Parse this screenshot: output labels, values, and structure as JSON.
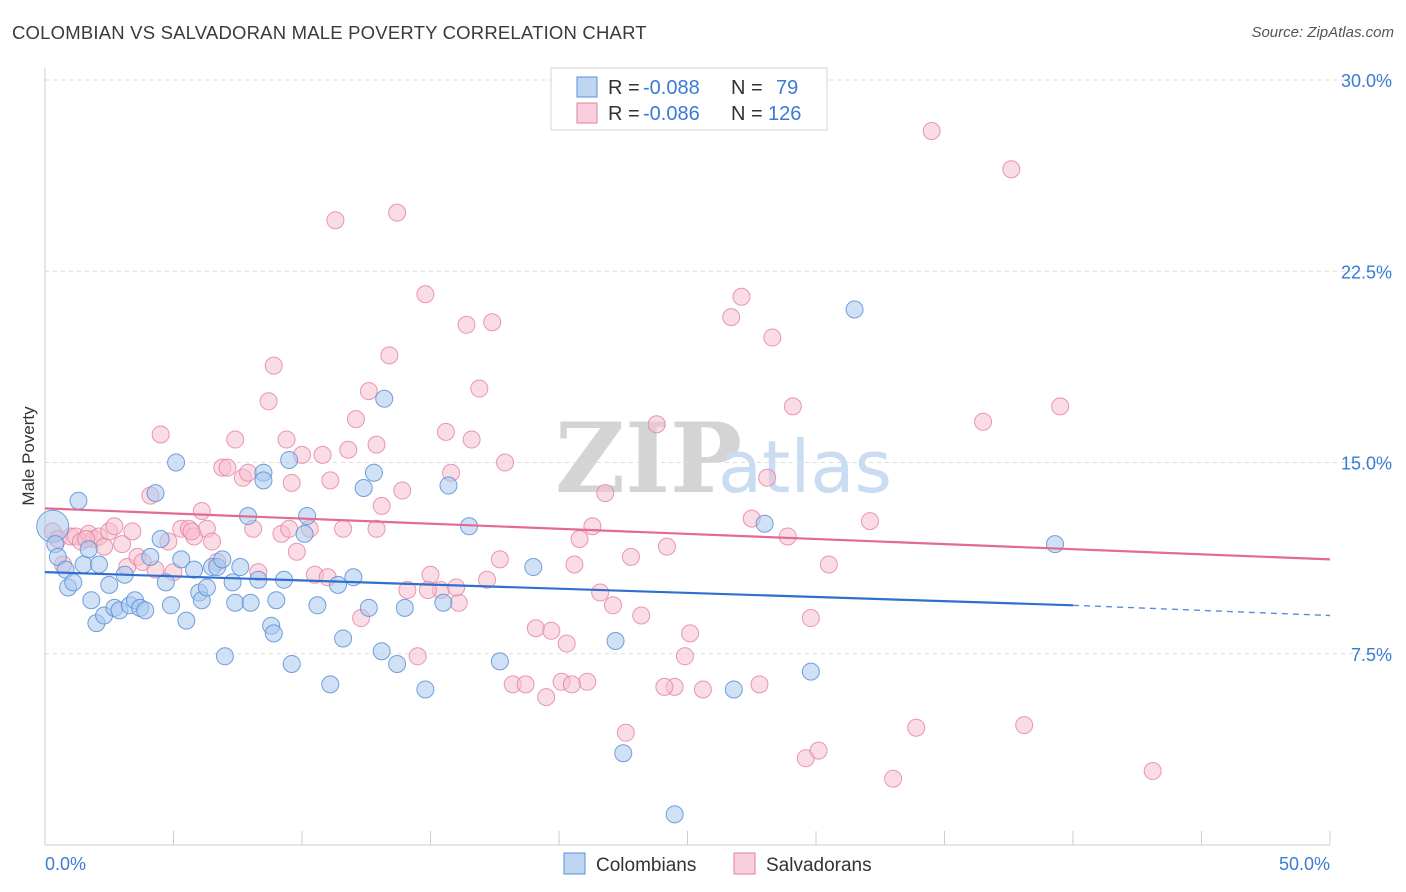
{
  "title": "COLOMBIAN VS SALVADORAN MALE POVERTY CORRELATION CHART",
  "source": "Source: ZipAtlas.com",
  "watermark": {
    "zip": "ZIP",
    "atlas": "atlas"
  },
  "colors": {
    "colombians_fill": "#a9c8ee",
    "colombians_stroke": "#5b8fd6",
    "colombians_line": "#2f6fcf",
    "salvadorans_fill": "#f6bfd0",
    "salvadorans_stroke": "#e57fa0",
    "salvadorans_line": "#e26a93",
    "tick_text": "#3a7bd5"
  },
  "legend_box": {
    "rows": [
      {
        "r_label": "R = ",
        "r_value": "-0.088",
        "n_label": "N = ",
        "n_value": "79"
      },
      {
        "r_label": "R = ",
        "r_value": "-0.086",
        "n_label": "N = ",
        "n_value": "126"
      }
    ]
  },
  "bottom_legend": [
    "Colombians",
    "Salvadorans"
  ],
  "chart_data": {
    "type": "scatter",
    "ylabel": "Male Poverty",
    "xlim": [
      0,
      50
    ],
    "ylim": [
      0,
      30
    ],
    "x_tick_labels": {
      "0": "0.0%",
      "50": "50.0%"
    },
    "y_tick_labels": {
      "7.5": "7.5%",
      "15": "15.0%",
      "22.5": "22.5%",
      "30": "30.0%"
    },
    "grid": "horizontal dashed",
    "series": [
      {
        "name": "Colombians",
        "trend": {
          "x": [
            0,
            40
          ],
          "y": [
            10.7,
            9.4
          ],
          "dashed_to": [
            50,
            9.0
          ]
        },
        "points": [
          [
            0.3,
            12.5
          ],
          [
            0.4,
            11.8
          ],
          [
            0.5,
            11.3
          ],
          [
            0.8,
            10.8
          ],
          [
            0.9,
            10.1
          ],
          [
            1.1,
            10.3
          ],
          [
            1.3,
            13.5
          ],
          [
            1.5,
            11.0
          ],
          [
            1.7,
            11.6
          ],
          [
            1.8,
            9.6
          ],
          [
            2.0,
            8.7
          ],
          [
            2.3,
            9.0
          ],
          [
            2.5,
            10.2
          ],
          [
            2.7,
            9.3
          ],
          [
            2.9,
            9.2
          ],
          [
            3.1,
            10.6
          ],
          [
            3.3,
            9.4
          ],
          [
            3.5,
            9.6
          ],
          [
            3.7,
            9.3
          ],
          [
            3.9,
            9.2
          ],
          [
            4.1,
            11.3
          ],
          [
            4.3,
            13.8
          ],
          [
            4.5,
            12.0
          ],
          [
            4.7,
            10.3
          ],
          [
            4.9,
            9.4
          ],
          [
            5.1,
            15.0
          ],
          [
            5.3,
            11.2
          ],
          [
            5.5,
            8.8
          ],
          [
            5.8,
            10.8
          ],
          [
            6.0,
            9.9
          ],
          [
            6.1,
            9.6
          ],
          [
            6.3,
            10.1
          ],
          [
            6.5,
            10.9
          ],
          [
            6.7,
            10.9
          ],
          [
            6.9,
            11.2
          ],
          [
            7.0,
            7.4
          ],
          [
            7.3,
            10.3
          ],
          [
            7.4,
            9.5
          ],
          [
            7.6,
            10.9
          ],
          [
            7.9,
            12.9
          ],
          [
            8.0,
            9.5
          ],
          [
            8.3,
            10.4
          ],
          [
            8.5,
            14.6
          ],
          [
            8.5,
            14.3
          ],
          [
            8.8,
            8.6
          ],
          [
            8.9,
            8.3
          ],
          [
            9.0,
            9.6
          ],
          [
            9.3,
            10.4
          ],
          [
            9.5,
            15.1
          ],
          [
            9.6,
            7.1
          ],
          [
            10.2,
            12.9
          ],
          [
            10.1,
            12.2
          ],
          [
            10.6,
            9.4
          ],
          [
            11.1,
            6.3
          ],
          [
            11.4,
            10.2
          ],
          [
            11.6,
            8.1
          ],
          [
            12.0,
            10.5
          ],
          [
            12.4,
            14.0
          ],
          [
            12.6,
            9.3
          ],
          [
            12.8,
            14.6
          ],
          [
            13.1,
            7.6
          ],
          [
            13.2,
            17.5
          ],
          [
            13.7,
            7.1
          ],
          [
            14.0,
            9.3
          ],
          [
            14.8,
            6.1
          ],
          [
            15.5,
            9.5
          ],
          [
            15.7,
            14.1
          ],
          [
            16.5,
            12.5
          ],
          [
            17.7,
            7.2
          ],
          [
            19.0,
            10.9
          ],
          [
            22.2,
            8.0
          ],
          [
            22.5,
            3.6
          ],
          [
            24.5,
            1.2
          ],
          [
            26.8,
            6.1
          ],
          [
            28.0,
            12.6
          ],
          [
            29.8,
            6.8
          ],
          [
            31.5,
            21.0
          ],
          [
            39.3,
            11.8
          ],
          [
            2.1,
            11.0
          ]
        ]
      },
      {
        "name": "Salvadorans",
        "trend": {
          "x": [
            0,
            50
          ],
          "y": [
            13.2,
            11.2
          ]
        },
        "points": [
          [
            0.3,
            12.3
          ],
          [
            0.5,
            12.0
          ],
          [
            0.7,
            11.0
          ],
          [
            1.0,
            12.1
          ],
          [
            1.2,
            12.1
          ],
          [
            1.4,
            11.9
          ],
          [
            1.7,
            12.2
          ],
          [
            1.9,
            12.0
          ],
          [
            2.1,
            12.1
          ],
          [
            2.3,
            11.7
          ],
          [
            2.5,
            12.3
          ],
          [
            2.7,
            12.5
          ],
          [
            3.0,
            11.8
          ],
          [
            3.2,
            10.9
          ],
          [
            3.4,
            12.3
          ],
          [
            3.6,
            11.3
          ],
          [
            3.8,
            11.1
          ],
          [
            4.1,
            13.7
          ],
          [
            4.3,
            10.8
          ],
          [
            4.5,
            16.1
          ],
          [
            4.8,
            11.9
          ],
          [
            5.0,
            10.7
          ],
          [
            5.3,
            12.4
          ],
          [
            5.6,
            12.4
          ],
          [
            5.8,
            12.1
          ],
          [
            6.1,
            13.1
          ],
          [
            6.3,
            12.4
          ],
          [
            6.5,
            11.9
          ],
          [
            6.9,
            14.8
          ],
          [
            7.1,
            14.8
          ],
          [
            7.4,
            15.9
          ],
          [
            7.7,
            14.4
          ],
          [
            7.9,
            14.6
          ],
          [
            8.1,
            12.4
          ],
          [
            8.3,
            10.7
          ],
          [
            8.7,
            17.4
          ],
          [
            8.9,
            18.8
          ],
          [
            9.2,
            12.2
          ],
          [
            9.4,
            15.9
          ],
          [
            9.6,
            14.2
          ],
          [
            9.8,
            11.5
          ],
          [
            10.0,
            15.3
          ],
          [
            10.3,
            12.4
          ],
          [
            10.5,
            10.6
          ],
          [
            10.8,
            15.3
          ],
          [
            11.1,
            14.3
          ],
          [
            11.3,
            24.5
          ],
          [
            11.6,
            12.4
          ],
          [
            11.8,
            15.5
          ],
          [
            12.1,
            16.7
          ],
          [
            12.3,
            8.9
          ],
          [
            12.6,
            17.8
          ],
          [
            12.9,
            15.7
          ],
          [
            13.1,
            13.3
          ],
          [
            13.4,
            19.2
          ],
          [
            13.7,
            24.8
          ],
          [
            13.9,
            13.9
          ],
          [
            14.1,
            10.0
          ],
          [
            14.5,
            7.4
          ],
          [
            14.8,
            21.6
          ],
          [
            15.0,
            10.6
          ],
          [
            15.4,
            10.0
          ],
          [
            15.6,
            16.2
          ],
          [
            15.8,
            14.6
          ],
          [
            16.1,
            9.5
          ],
          [
            16.4,
            20.4
          ],
          [
            16.6,
            15.9
          ],
          [
            16.9,
            17.9
          ],
          [
            17.2,
            10.4
          ],
          [
            17.4,
            20.5
          ],
          [
            17.7,
            11.2
          ],
          [
            17.9,
            15.0
          ],
          [
            18.2,
            6.3
          ],
          [
            18.7,
            6.3
          ],
          [
            19.1,
            8.5
          ],
          [
            19.5,
            5.8
          ],
          [
            19.7,
            8.4
          ],
          [
            20.1,
            6.4
          ],
          [
            20.3,
            7.9
          ],
          [
            20.6,
            11.0
          ],
          [
            20.8,
            12.0
          ],
          [
            21.1,
            6.4
          ],
          [
            21.3,
            12.5
          ],
          [
            21.6,
            9.9
          ],
          [
            21.8,
            13.8
          ],
          [
            22.1,
            9.4
          ],
          [
            22.6,
            4.4
          ],
          [
            22.8,
            11.3
          ],
          [
            23.2,
            9.0
          ],
          [
            23.8,
            16.5
          ],
          [
            24.2,
            11.7
          ],
          [
            24.5,
            6.2
          ],
          [
            24.9,
            7.4
          ],
          [
            25.1,
            8.3
          ],
          [
            25.6,
            6.1
          ],
          [
            26.7,
            20.7
          ],
          [
            27.1,
            21.5
          ],
          [
            27.5,
            12.8
          ],
          [
            27.8,
            6.3
          ],
          [
            28.1,
            14.4
          ],
          [
            28.3,
            19.9
          ],
          [
            28.9,
            12.1
          ],
          [
            29.1,
            17.2
          ],
          [
            29.6,
            3.4
          ],
          [
            29.8,
            8.9
          ],
          [
            30.1,
            3.7
          ],
          [
            30.5,
            11.0
          ],
          [
            32.1,
            12.7
          ],
          [
            33.0,
            2.6
          ],
          [
            33.9,
            4.6
          ],
          [
            34.5,
            28.0
          ],
          [
            36.5,
            16.6
          ],
          [
            37.6,
            26.5
          ],
          [
            38.1,
            4.7
          ],
          [
            39.5,
            17.2
          ],
          [
            43.1,
            2.9
          ],
          [
            20.5,
            6.3
          ],
          [
            12.9,
            12.4
          ],
          [
            16.0,
            10.1
          ],
          [
            6.7,
            11.1
          ],
          [
            24.1,
            6.2
          ],
          [
            9.5,
            12.4
          ],
          [
            14.9,
            10.0
          ],
          [
            5.7,
            12.3
          ],
          [
            11.0,
            10.5
          ],
          [
            1.6,
            12.0
          ]
        ]
      }
    ]
  }
}
